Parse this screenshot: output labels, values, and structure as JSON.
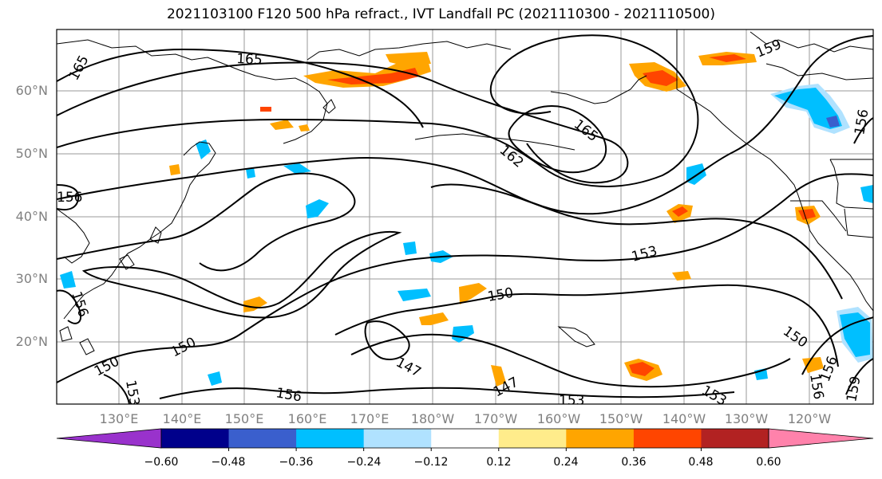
{
  "title": "2021103100 F120 500 hPa refract., IVT Landfall PC (2021110300 - 2021110500)",
  "lat_labels": [
    "60°N",
    "50°N",
    "40°N",
    "30°N",
    "20°N"
  ],
  "lon_labels": [
    "130°E",
    "140°E",
    "150°E",
    "160°E",
    "170°E",
    "180°W",
    "170°W",
    "160°W",
    "150°W",
    "140°W",
    "130°W",
    "120°W"
  ],
  "colorbar": {
    "ticks": [
      "−0.60",
      "−0.48",
      "−0.36",
      "−0.24",
      "−0.12",
      "0.12",
      "0.24",
      "0.36",
      "0.48",
      "0.60"
    ],
    "colors": [
      "#9932cc",
      "#00008b",
      "#3a5fcd",
      "#00bfff",
      "#b0e2ff",
      "#ffffff",
      "#ffec8b",
      "#ffa500",
      "#ff4500",
      "#b22222",
      "#ff82ab"
    ]
  },
  "contour_labels": [
    "165",
    "165",
    "159",
    "165",
    "162",
    "153",
    "150",
    "150",
    "150",
    "147",
    "147",
    "153",
    "150",
    "156",
    "156",
    "153",
    "159",
    "156",
    "156",
    "153",
    "156",
    "156"
  ]
}
